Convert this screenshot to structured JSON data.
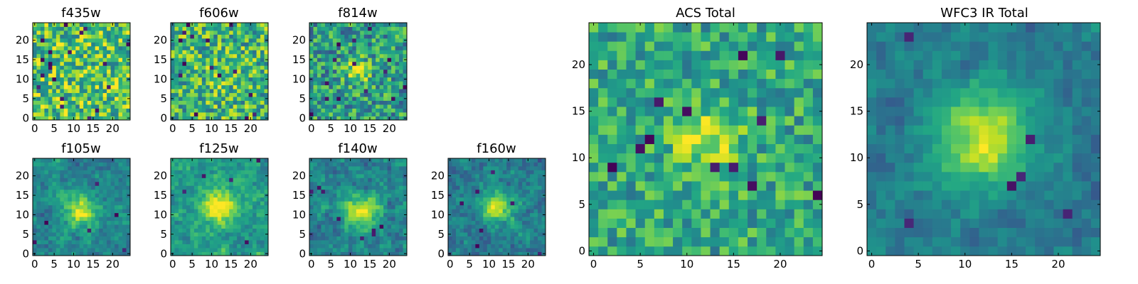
{
  "chart_data": [
    {
      "type": "heatmap",
      "title": "f435w",
      "grid_size": 25,
      "xticks": [
        0,
        5,
        10,
        15,
        20
      ],
      "yticks": [
        0,
        5,
        10,
        15,
        20
      ],
      "xlim": [
        -0.5,
        24.5
      ],
      "ylim": [
        -0.5,
        24.5
      ],
      "colormap": "viridis",
      "source_position": [
        12,
        10
      ],
      "source_strength": 0.0,
      "source_width": 2.5,
      "noise": 0.32,
      "baseline": 0.72,
      "dark_pixels": 20,
      "seed": 11,
      "smooth": false
    },
    {
      "type": "heatmap",
      "title": "f606w",
      "grid_size": 25,
      "xticks": [
        0,
        5,
        10,
        15,
        20
      ],
      "yticks": [
        0,
        5,
        10,
        15,
        20
      ],
      "xlim": [
        -0.5,
        24.5
      ],
      "ylim": [
        -0.5,
        24.5
      ],
      "colormap": "viridis",
      "source_position": [
        13,
        11
      ],
      "source_strength": 0.12,
      "source_width": 2.5,
      "noise": 0.3,
      "baseline": 0.66,
      "dark_pixels": 16,
      "seed": 23,
      "smooth": false
    },
    {
      "type": "heatmap",
      "title": "f814w",
      "grid_size": 25,
      "xticks": [
        0,
        5,
        10,
        15,
        20
      ],
      "yticks": [
        0,
        5,
        10,
        15,
        20
      ],
      "xlim": [
        -0.5,
        24.5
      ],
      "ylim": [
        -0.5,
        24.5
      ],
      "colormap": "viridis",
      "source_position": [
        12,
        12
      ],
      "source_strength": 0.38,
      "source_width": 2.2,
      "noise": 0.28,
      "baseline": 0.55,
      "dark_pixels": 14,
      "seed": 37,
      "smooth": false
    },
    {
      "type": "heatmap",
      "title": "f105w",
      "grid_size": 25,
      "xticks": [
        0,
        5,
        10,
        15,
        20
      ],
      "yticks": [
        0,
        5,
        10,
        15,
        20
      ],
      "xlim": [
        -0.5,
        24.5
      ],
      "ylim": [
        -0.5,
        24.5
      ],
      "colormap": "viridis",
      "source_position": [
        12,
        11
      ],
      "source_strength": 0.5,
      "source_width": 3.0,
      "noise": 0.22,
      "baseline": 0.45,
      "dark_pixels": 6,
      "seed": 41,
      "smooth": true
    },
    {
      "type": "heatmap",
      "title": "f125w",
      "grid_size": 25,
      "xticks": [
        0,
        5,
        10,
        15,
        20
      ],
      "yticks": [
        0,
        5,
        10,
        15,
        20
      ],
      "xlim": [
        -0.5,
        24.5
      ],
      "ylim": [
        -0.5,
        24.5
      ],
      "colormap": "viridis",
      "source_position": [
        12,
        12
      ],
      "source_strength": 0.45,
      "source_width": 3.2,
      "noise": 0.22,
      "baseline": 0.55,
      "dark_pixels": 5,
      "seed": 53,
      "smooth": true
    },
    {
      "type": "heatmap",
      "title": "f140w",
      "grid_size": 25,
      "xticks": [
        0,
        5,
        10,
        15,
        20
      ],
      "yticks": [
        0,
        5,
        10,
        15,
        20
      ],
      "xlim": [
        -0.5,
        24.5
      ],
      "ylim": [
        -0.5,
        24.5
      ],
      "colormap": "viridis",
      "source_position": [
        13,
        11
      ],
      "source_strength": 0.48,
      "source_width": 3.0,
      "noise": 0.24,
      "baseline": 0.45,
      "dark_pixels": 8,
      "seed": 67,
      "smooth": true
    },
    {
      "type": "heatmap",
      "title": "f160w",
      "grid_size": 25,
      "xticks": [
        0,
        5,
        10,
        15,
        20
      ],
      "yticks": [
        0,
        5,
        10,
        15,
        20
      ],
      "xlim": [
        -0.5,
        24.5
      ],
      "ylim": [
        -0.5,
        24.5
      ],
      "colormap": "viridis",
      "source_position": [
        12,
        12
      ],
      "source_strength": 0.52,
      "source_width": 2.8,
      "noise": 0.22,
      "baseline": 0.42,
      "dark_pixels": 7,
      "seed": 79,
      "smooth": true
    },
    {
      "type": "heatmap",
      "title": "ACS Total",
      "grid_size": 25,
      "xticks": [
        0,
        5,
        10,
        15,
        20
      ],
      "yticks": [
        0,
        5,
        10,
        15,
        20
      ],
      "xlim": [
        -0.5,
        24.5
      ],
      "ylim": [
        -0.5,
        24.5
      ],
      "colormap": "viridis",
      "source_position": [
        12,
        12
      ],
      "source_strength": 0.3,
      "source_width": 2.6,
      "noise": 0.22,
      "baseline": 0.6,
      "dark_pixels": 12,
      "seed": 97,
      "smooth": false
    },
    {
      "type": "heatmap",
      "title": "WFC3 IR Total",
      "grid_size": 25,
      "xticks": [
        0,
        5,
        10,
        15,
        20
      ],
      "yticks": [
        0,
        5,
        10,
        15,
        20
      ],
      "xlim": [
        -0.5,
        24.5
      ],
      "ylim": [
        -0.5,
        24.5
      ],
      "colormap": "viridis",
      "source_position": [
        12,
        12
      ],
      "source_strength": 0.55,
      "source_width": 3.4,
      "noise": 0.16,
      "baseline": 0.42,
      "dark_pixels": 6,
      "seed": 113,
      "smooth": true
    }
  ]
}
